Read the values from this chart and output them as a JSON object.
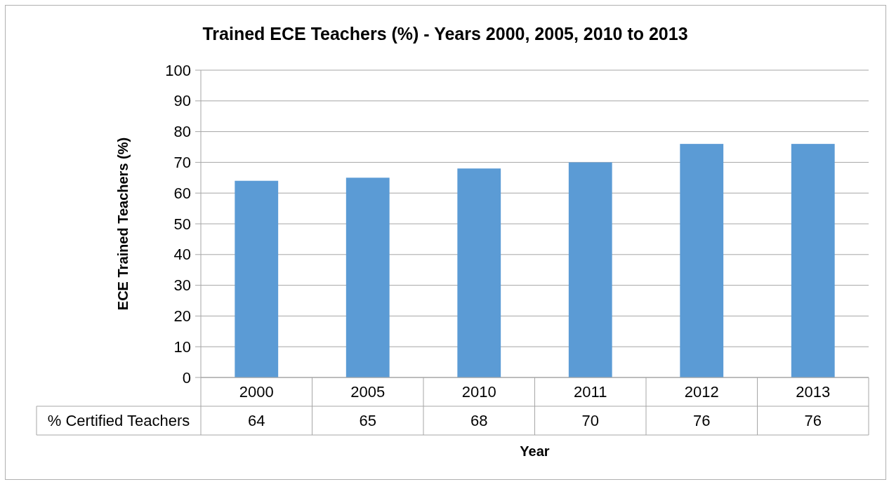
{
  "chart_data": {
    "type": "bar",
    "title": "Trained ECE Teachers (%) - Years 2000, 2005, 2010 to 2013",
    "xlabel": "Year",
    "ylabel": "ECE Trained Teachers (%)",
    "categories": [
      "2000",
      "2005",
      "2010",
      "2011",
      "2012",
      "2013"
    ],
    "series": [
      {
        "name": "% Certified Teachers",
        "color": "#5b9bd5",
        "values": [
          64,
          65,
          68,
          70,
          76,
          76
        ]
      }
    ],
    "ylim": [
      0,
      100
    ],
    "yticks": [
      0,
      10,
      20,
      30,
      40,
      50,
      60,
      70,
      80,
      90,
      100
    ],
    "grid": "y",
    "data_labels": true
  }
}
